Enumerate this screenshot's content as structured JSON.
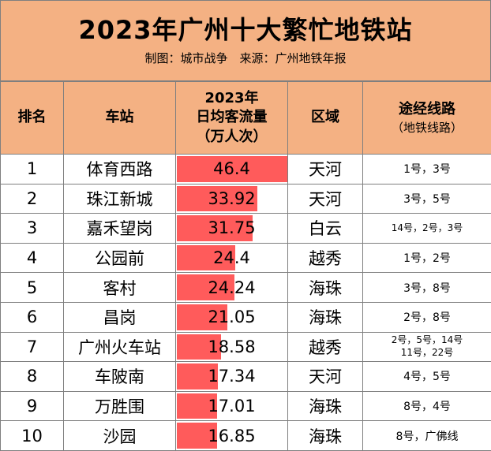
{
  "title": "2023年广州十大繁忙地铁站",
  "subtitle": "制图：城市战争　来源：广州地铁年报",
  "headers": {
    "rank": "排名",
    "station": "车站",
    "flow_line1": "2023年",
    "flow_line2": "日均客流量",
    "flow_line3": "（万人次）",
    "district": "区域",
    "lines_line1": "途经线路",
    "lines_line2": "（地铁线路）"
  },
  "colors": {
    "header_bg": "#f4b183",
    "bar": "#ff5b5b",
    "border": "#7f7f7f"
  },
  "bar_max": 46.4,
  "rows": [
    {
      "rank": "1",
      "station": "体育西路",
      "flow": "46.4",
      "flow_value": 46.4,
      "district": "天河",
      "lines": "1号，3号",
      "lines2": ""
    },
    {
      "rank": "2",
      "station": "珠江新城",
      "flow": "33.92",
      "flow_value": 33.92,
      "district": "天河",
      "lines": "3号，5号",
      "lines2": ""
    },
    {
      "rank": "3",
      "station": "嘉禾望岗",
      "flow": "31.75",
      "flow_value": 31.75,
      "district": "白云",
      "lines": "14号，2号，3号",
      "lines2": ""
    },
    {
      "rank": "4",
      "station": "公园前",
      "flow": "24.4",
      "flow_value": 24.4,
      "district": "越秀",
      "lines": "1号，2号",
      "lines2": ""
    },
    {
      "rank": "5",
      "station": "客村",
      "flow": "24.24",
      "flow_value": 24.24,
      "district": "海珠",
      "lines": "3号，8号",
      "lines2": ""
    },
    {
      "rank": "6",
      "station": "昌岗",
      "flow": "21.05",
      "flow_value": 21.05,
      "district": "海珠",
      "lines": "2号，8号",
      "lines2": ""
    },
    {
      "rank": "7",
      "station": "广州火车站",
      "flow": "18.58",
      "flow_value": 18.58,
      "district": "越秀",
      "lines": "2号，5号，14号",
      "lines2": "11号，22号"
    },
    {
      "rank": "8",
      "station": "车陂南",
      "flow": "17.34",
      "flow_value": 17.34,
      "district": "天河",
      "lines": "4号，5号",
      "lines2": ""
    },
    {
      "rank": "9",
      "station": "万胜围",
      "flow": "17.01",
      "flow_value": 17.01,
      "district": "海珠",
      "lines": "8号，4号",
      "lines2": ""
    },
    {
      "rank": "10",
      "station": "沙园",
      "flow": "16.85",
      "flow_value": 16.85,
      "district": "海珠",
      "lines": "8号，广佛线",
      "lines2": ""
    }
  ]
}
